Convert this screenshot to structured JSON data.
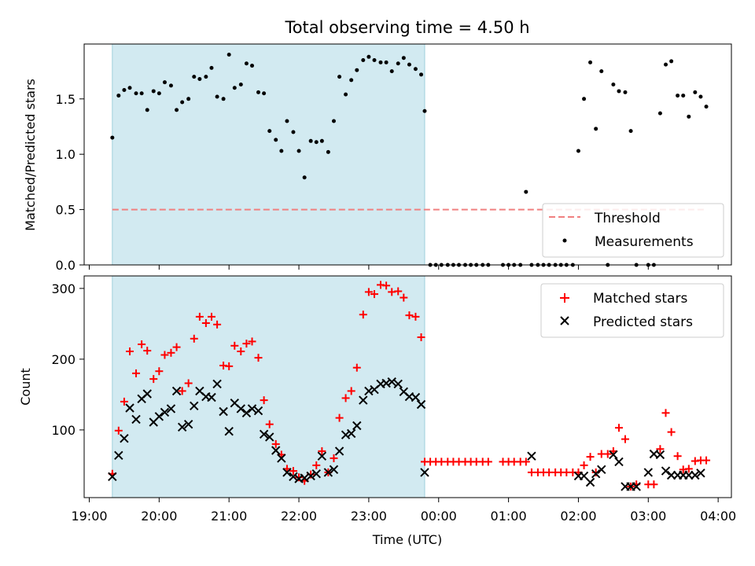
{
  "figure": {
    "title": "Total observing time = 4.50 h",
    "xlabel": "Time (UTC)",
    "xticks": [
      "19:00",
      "20:00",
      "21:00",
      "22:00",
      "23:00",
      "00:00",
      "01:00",
      "02:00",
      "03:00",
      "04:00"
    ]
  },
  "chart_data": [
    {
      "type": "scatter",
      "ylabel": "Matched/Predicted stars",
      "ylim": [
        0,
        2.0
      ],
      "yticks": [
        "0.0",
        "0.5",
        "1.0",
        "1.5"
      ],
      "x_unit": "hours since 19:00 UTC",
      "shaded_interval": [
        0.33,
        4.8
      ],
      "shaded_color": "#add8e6",
      "threshold": {
        "name": "Threshold",
        "value": 0.5,
        "x_range": [
          0.33,
          8.8
        ],
        "color": "#f08080"
      },
      "legend": {
        "position": "lower right",
        "entries": [
          "Threshold",
          "Measurements"
        ]
      },
      "series": [
        {
          "name": "Measurements",
          "color": "#000000",
          "x": [
            0.33,
            0.42,
            0.5,
            0.58,
            0.67,
            0.75,
            0.83,
            0.92,
            1.0,
            1.08,
            1.17,
            1.25,
            1.33,
            1.42,
            1.5,
            1.58,
            1.67,
            1.75,
            1.83,
            1.92,
            2.0,
            2.08,
            2.17,
            2.25,
            2.33,
            2.42,
            2.5,
            2.58,
            2.67,
            2.75,
            2.83,
            2.92,
            3.0,
            3.08,
            3.17,
            3.25,
            3.33,
            3.42,
            3.5,
            3.58,
            3.67,
            3.75,
            3.83,
            3.92,
            4.0,
            4.08,
            4.17,
            4.25,
            4.33,
            4.42,
            4.5,
            4.58,
            4.67,
            4.75,
            4.8,
            4.88,
            4.96,
            5.04,
            5.13,
            5.21,
            5.29,
            5.38,
            5.46,
            5.54,
            5.63,
            5.71,
            5.92,
            6.0,
            6.08,
            6.17,
            6.25,
            6.33,
            6.42,
            6.5,
            6.58,
            6.67,
            6.75,
            6.83,
            6.92,
            7.0,
            7.08,
            7.17,
            7.25,
            7.33,
            7.42,
            7.5,
            7.58,
            7.67,
            7.75,
            7.83,
            8.0,
            8.08,
            8.17,
            8.25,
            8.33,
            8.42,
            8.5,
            8.58,
            8.67,
            8.75,
            8.83
          ],
          "values": [
            1.15,
            1.53,
            1.58,
            1.6,
            1.55,
            1.55,
            1.4,
            1.57,
            1.55,
            1.65,
            1.62,
            1.4,
            1.47,
            1.5,
            1.7,
            1.68,
            1.7,
            1.78,
            1.52,
            1.5,
            1.9,
            1.6,
            1.63,
            1.82,
            1.8,
            1.56,
            1.55,
            1.21,
            1.13,
            1.03,
            1.3,
            1.2,
            1.03,
            0.79,
            1.12,
            1.11,
            1.12,
            1.02,
            1.3,
            1.7,
            1.54,
            1.67,
            1.76,
            1.85,
            1.88,
            1.85,
            1.83,
            1.83,
            1.75,
            1.82,
            1.87,
            1.81,
            1.77,
            1.72,
            1.39,
            0,
            0,
            0,
            0,
            0,
            0,
            0,
            0,
            0,
            0,
            0,
            0,
            0,
            0,
            0,
            0.66,
            0,
            0,
            0,
            0,
            0,
            0,
            0,
            0,
            1.03,
            1.5,
            1.83,
            1.23,
            1.75,
            0,
            1.63,
            1.57,
            1.56,
            1.21,
            0,
            0,
            0,
            1.37,
            1.81,
            1.84,
            1.53,
            1.53,
            1.34,
            1.56,
            1.52,
            1.43
          ]
        }
      ]
    },
    {
      "type": "scatter",
      "ylabel": "Count",
      "ylim": [
        5,
        315
      ],
      "yticks": [
        "100",
        "200",
        "300"
      ],
      "x_unit": "hours since 19:00 UTC",
      "shaded_interval": [
        0.33,
        4.8
      ],
      "shaded_color": "#add8e6",
      "legend": {
        "position": "upper right",
        "entries": [
          "Matched stars",
          "Predicted stars"
        ]
      },
      "series": [
        {
          "name": "Matched stars",
          "marker": "+",
          "color": "#ff0000",
          "x": [
            0.33,
            0.42,
            0.5,
            0.58,
            0.67,
            0.75,
            0.83,
            0.92,
            1.0,
            1.08,
            1.17,
            1.25,
            1.33,
            1.42,
            1.5,
            1.58,
            1.67,
            1.75,
            1.83,
            1.92,
            2.0,
            2.08,
            2.17,
            2.25,
            2.33,
            2.42,
            2.5,
            2.58,
            2.67,
            2.75,
            2.83,
            2.92,
            3.0,
            3.08,
            3.17,
            3.25,
            3.33,
            3.42,
            3.5,
            3.58,
            3.67,
            3.75,
            3.83,
            3.92,
            4.0,
            4.08,
            4.17,
            4.25,
            4.33,
            4.42,
            4.5,
            4.58,
            4.67,
            4.75,
            4.8,
            4.88,
            4.96,
            5.04,
            5.13,
            5.21,
            5.29,
            5.38,
            5.46,
            5.54,
            5.63,
            5.71,
            5.92,
            6.0,
            6.08,
            6.17,
            6.25,
            6.33,
            6.42,
            6.5,
            6.58,
            6.67,
            6.75,
            6.83,
            6.92,
            7.0,
            7.08,
            7.17,
            7.25,
            7.33,
            7.42,
            7.5,
            7.58,
            7.67,
            7.75,
            7.83,
            8.0,
            8.08,
            8.17,
            8.25,
            8.33,
            8.42,
            8.5,
            8.58,
            8.67,
            8.75,
            8.83
          ],
          "values": [
            38,
            99,
            140,
            211,
            180,
            221,
            212,
            172,
            183,
            206,
            209,
            217,
            155,
            166,
            229,
            260,
            251,
            260,
            249,
            191,
            190,
            219,
            211,
            222,
            225,
            202,
            142,
            108,
            80,
            65,
            45,
            42,
            33,
            28,
            37,
            50,
            70,
            40,
            60,
            117,
            145,
            155,
            188,
            263,
            295,
            292,
            305,
            304,
            295,
            296,
            287,
            262,
            260,
            231,
            55,
            55,
            55,
            55,
            55,
            55,
            55,
            55,
            55,
            55,
            55,
            55,
            55,
            55,
            55,
            55,
            55,
            40,
            40,
            40,
            40,
            40,
            40,
            40,
            40,
            40,
            50,
            62,
            40,
            66,
            66,
            70,
            103,
            87,
            20,
            23,
            23,
            23,
            73,
            124,
            97,
            63,
            44,
            45,
            56,
            57,
            57
          ]
        },
        {
          "name": "Predicted stars",
          "marker": "x",
          "color": "#000000",
          "x": [
            0.33,
            0.42,
            0.5,
            0.58,
            0.67,
            0.75,
            0.83,
            0.92,
            1.0,
            1.08,
            1.17,
            1.25,
            1.33,
            1.42,
            1.5,
            1.58,
            1.67,
            1.75,
            1.83,
            1.92,
            2.0,
            2.08,
            2.17,
            2.25,
            2.33,
            2.42,
            2.5,
            2.58,
            2.67,
            2.75,
            2.83,
            2.92,
            3.0,
            3.08,
            3.17,
            3.25,
            3.33,
            3.42,
            3.5,
            3.58,
            3.67,
            3.75,
            3.83,
            3.92,
            4.0,
            4.08,
            4.17,
            4.25,
            4.33,
            4.42,
            4.5,
            4.58,
            4.67,
            4.75,
            4.8,
            6.33,
            7.0,
            7.08,
            7.17,
            7.25,
            7.33,
            7.5,
            7.58,
            7.67,
            7.75,
            7.83,
            8.0,
            8.08,
            8.17,
            8.25,
            8.33,
            8.42,
            8.5,
            8.58,
            8.67,
            8.75
          ],
          "values": [
            34,
            64,
            88,
            131,
            115,
            144,
            151,
            111,
            119,
            125,
            130,
            155,
            104,
            108,
            134,
            155,
            147,
            146,
            165,
            126,
            98,
            138,
            130,
            124,
            130,
            127,
            94,
            90,
            71,
            60,
            40,
            34,
            31,
            32,
            35,
            38,
            63,
            40,
            44,
            70,
            93,
            95,
            106,
            142,
            155,
            157,
            165,
            166,
            168,
            165,
            154,
            147,
            146,
            136,
            40,
            63,
            35,
            35,
            26,
            38,
            44,
            65,
            55,
            20,
            20,
            20,
            40,
            66,
            65,
            42,
            36,
            36,
            36,
            36,
            36,
            39
          ]
        }
      ]
    }
  ]
}
